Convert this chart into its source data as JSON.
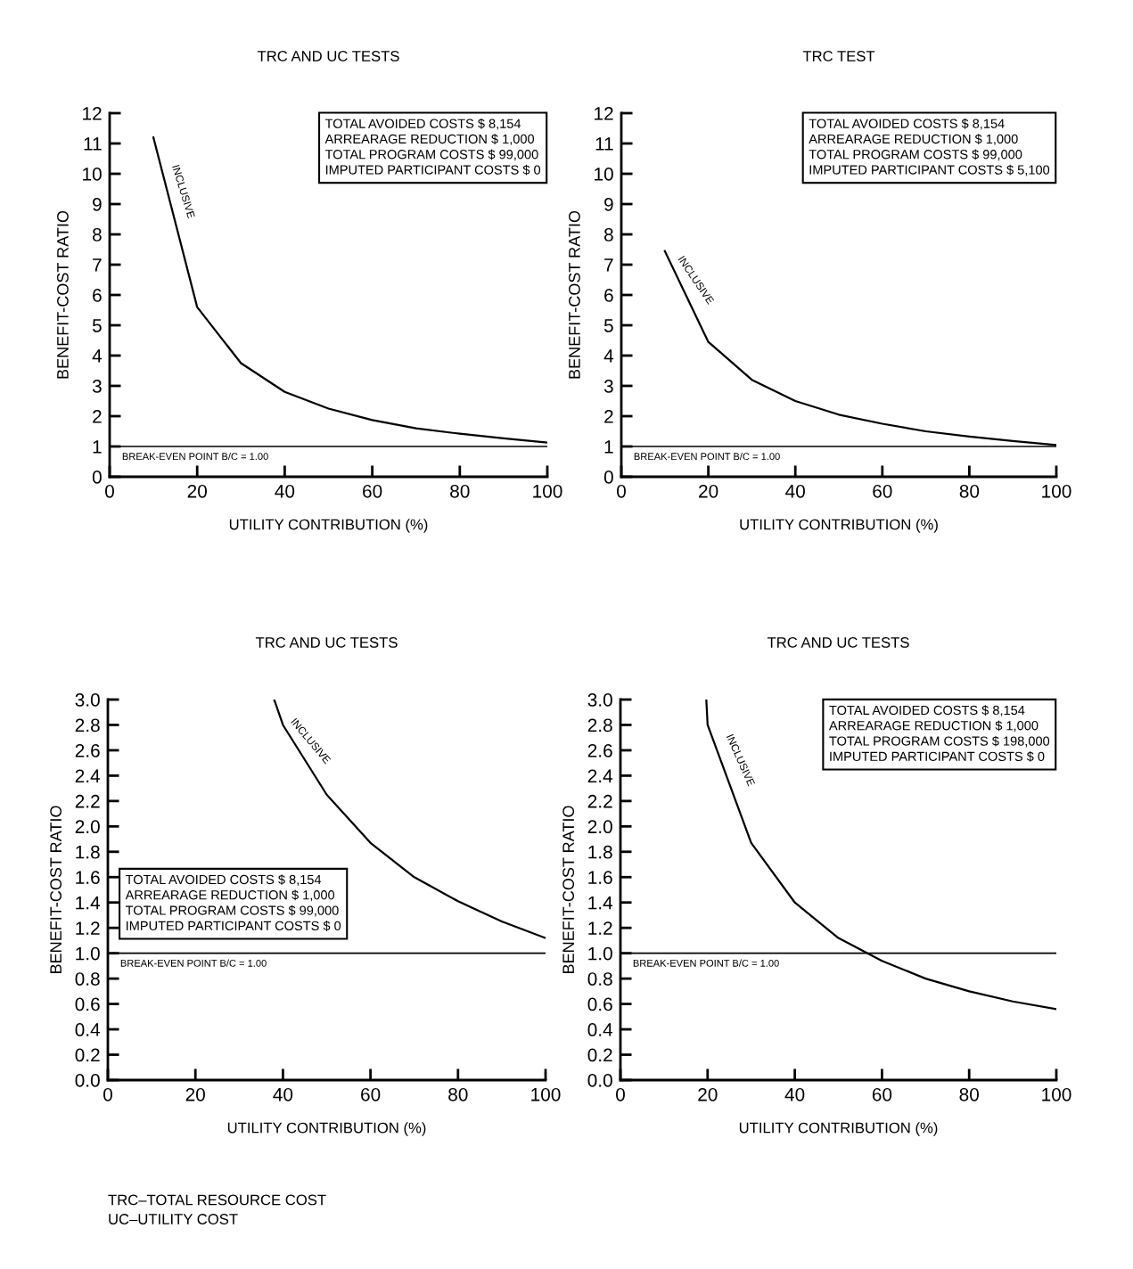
{
  "chart_data": [
    {
      "type": "line",
      "title": "TRC AND UC TESTS",
      "xlabel": "UTILITY CONTRIBUTION (%)",
      "ylabel": "BENEFIT-COST RATIO",
      "x": [
        10,
        20,
        30,
        40,
        50,
        60,
        70,
        80,
        90,
        100
      ],
      "series": [
        {
          "color": "#000000",
          "values": [
            11.2,
            5.6,
            3.75,
            2.8,
            2.25,
            1.87,
            1.6,
            1.42,
            1.27,
            1.13
          ]
        }
      ],
      "xlim": [
        0,
        100
      ],
      "xticks": [
        0,
        20,
        40,
        60,
        80,
        100
      ],
      "ylim": [
        0,
        12
      ],
      "yticks": [
        0,
        1,
        2,
        3,
        4,
        5,
        6,
        7,
        8,
        9,
        10,
        11,
        12
      ],
      "ref_lines": [
        {
          "axis": "y",
          "value": 1,
          "label": "BREAK-EVEN POINT B/C = 1.00",
          "color": "#000000"
        }
      ],
      "annotations": [
        "TOTAL AVOIDED COSTS $ 8,154\nARREARAGE REDUCTION $ 1,000\nTOTAL PROGRAM COSTS $ 99,000\nIMPUTED PARTICIPANT COSTS $ 0",
        "INCLUSIVE"
      ],
      "grid": false,
      "legend": false,
      "marker": "none",
      "line_style": "solid"
    },
    {
      "type": "line",
      "title": "TRC TEST",
      "xlabel": "UTILITY CONTRIBUTION (%)",
      "ylabel": "BENEFIT-COST RATIO",
      "x": [
        10,
        20,
        30,
        40,
        50,
        60,
        70,
        80,
        90,
        100
      ],
      "series": [
        {
          "color": "#000000",
          "values": [
            7.45,
            4.45,
            3.2,
            2.5,
            2.05,
            1.75,
            1.5,
            1.33,
            1.18,
            1.05
          ]
        }
      ],
      "xlim": [
        0,
        100
      ],
      "xticks": [
        0,
        20,
        40,
        60,
        80,
        100
      ],
      "ylim": [
        0,
        12
      ],
      "yticks": [
        0,
        1,
        2,
        3,
        4,
        5,
        6,
        7,
        8,
        9,
        10,
        11,
        12
      ],
      "ref_lines": [
        {
          "axis": "y",
          "value": 1,
          "label": "BREAK-EVEN POINT B/C = 1.00",
          "color": "#000000"
        }
      ],
      "annotations": [
        "TOTAL AVOIDED COSTS $ 8,154\nARREARAGE REDUCTION $ 1,000\nTOTAL PROGRAM COSTS $ 99,000\nIMPUTED PARTICIPANT COSTS $ 5,100",
        "INCLUSIVE"
      ],
      "grid": false,
      "legend": false,
      "marker": "none",
      "line_style": "solid"
    },
    {
      "type": "line",
      "title": "TRC AND UC TESTS",
      "xlabel": "UTILITY CONTRIBUTION (%)",
      "ylabel": "BENEFIT-COST RATIO",
      "x": [
        38,
        40,
        50,
        60,
        70,
        80,
        90,
        100
      ],
      "series": [
        {
          "color": "#000000",
          "values": [
            3.0,
            2.8,
            2.25,
            1.87,
            1.6,
            1.41,
            1.25,
            1.12
          ]
        }
      ],
      "xlim": [
        0,
        100
      ],
      "xticks": [
        0,
        20,
        40,
        60,
        80,
        100
      ],
      "ylim": [
        0,
        3
      ],
      "yticks": [
        {
          "value": 0,
          "label": "0.0"
        },
        {
          "value": 0.2,
          "label": "0.2"
        },
        {
          "value": 0.4,
          "label": "0.4"
        },
        {
          "value": 0.6,
          "label": "0.6"
        },
        {
          "value": 0.8,
          "label": "0.8"
        },
        {
          "value": 1,
          "label": "1.0"
        },
        {
          "value": 1.2,
          "label": "1.2"
        },
        {
          "value": 1.4,
          "label": "1.4"
        },
        {
          "value": 1.6,
          "label": "1.6"
        },
        {
          "value": 1.8,
          "label": "1.8"
        },
        {
          "value": 2,
          "label": "2.0"
        },
        {
          "value": 2.2,
          "label": "2.2"
        },
        {
          "value": 2.4,
          "label": "2.4"
        },
        {
          "value": 2.6,
          "label": "2.6"
        },
        {
          "value": 2.8,
          "label": "2.8"
        },
        {
          "value": 3,
          "label": "3.0"
        }
      ],
      "ref_lines": [
        {
          "axis": "y",
          "value": 1,
          "label": "BREAK-EVEN POINT B/C = 1.00",
          "color": "#000000"
        }
      ],
      "annotations": [
        "TOTAL AVOIDED COSTS $ 8,154\nARREARAGE REDUCTION $ 1,000\nTOTAL PROGRAM COSTS $ 99,000\nIMPUTED PARTICIPANT COSTS $ 0",
        "INCLUSIVE",
        "TRC–TOTAL RESOURCE COST\nUC–UTILITY COST"
      ],
      "grid": false,
      "legend": false,
      "marker": "none",
      "line_style": "solid"
    },
    {
      "type": "line",
      "title": "TRC AND UC TESTS",
      "xlabel": "UTILITY CONTRIBUTION (%)",
      "ylabel": "BENEFIT-COST RATIO",
      "x": [
        19.7,
        20,
        30,
        40,
        50,
        60,
        70,
        80,
        90,
        100
      ],
      "series": [
        {
          "color": "#000000",
          "values": [
            3.0,
            2.8,
            1.87,
            1.4,
            1.12,
            0.94,
            0.8,
            0.7,
            0.62,
            0.56
          ]
        }
      ],
      "xlim": [
        0,
        100
      ],
      "xticks": [
        0,
        20,
        40,
        60,
        80,
        100
      ],
      "ylim": [
        0,
        3
      ],
      "yticks": [
        {
          "value": 0,
          "label": "0.0"
        },
        {
          "value": 0.2,
          "label": "0.2"
        },
        {
          "value": 0.4,
          "label": "0.4"
        },
        {
          "value": 0.6,
          "label": "0.6"
        },
        {
          "value": 0.8,
          "label": "0.8"
        },
        {
          "value": 1,
          "label": "1.0"
        },
        {
          "value": 1.2,
          "label": "1.2"
        },
        {
          "value": 1.4,
          "label": "1.4"
        },
        {
          "value": 1.6,
          "label": "1.6"
        },
        {
          "value": 1.8,
          "label": "1.8"
        },
        {
          "value": 2,
          "label": "2.0"
        },
        {
          "value": 2.2,
          "label": "2.2"
        },
        {
          "value": 2.4,
          "label": "2.4"
        },
        {
          "value": 2.6,
          "label": "2.6"
        },
        {
          "value": 2.8,
          "label": "2.8"
        },
        {
          "value": 3,
          "label": "3.0"
        }
      ],
      "ref_lines": [
        {
          "axis": "y",
          "value": 1,
          "label": "BREAK-EVEN POINT B/C = 1.00",
          "color": "#000000"
        }
      ],
      "annotations": [
        "TOTAL AVOIDED COSTS $ 8,154\nARREARAGE REDUCTION $ 1,000\nTOTAL PROGRAM COSTS $ 198,000\nIMPUTED PARTICIPANT COSTS $ 0",
        "INCLUSIVE"
      ],
      "grid": false,
      "legend": false,
      "marker": "none",
      "line_style": "solid"
    }
  ]
}
